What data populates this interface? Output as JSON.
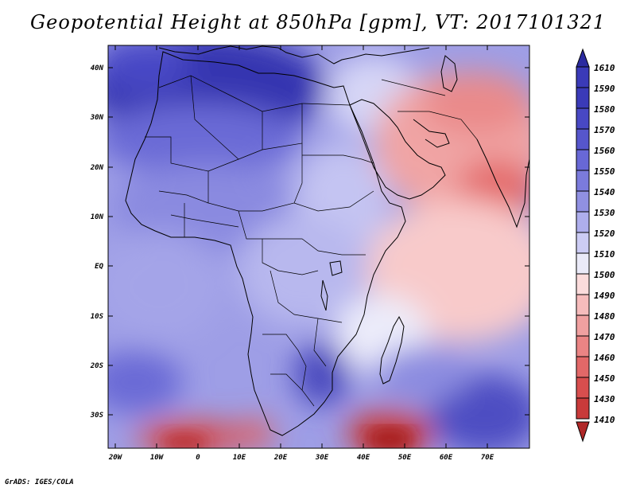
{
  "title": "Geopotential Height at 850hPa [gpm], VT: 2017101321",
  "credit": "GrADS: IGES/COLA",
  "map": {
    "lat_labels": [
      "40N",
      "30N",
      "20N",
      "10N",
      "EQ",
      "10S",
      "20S",
      "30S"
    ],
    "lon_labels": [
      "20W",
      "10W",
      "0",
      "10E",
      "20E",
      "30E",
      "40E",
      "50E",
      "60E",
      "70E"
    ]
  },
  "colorbar": {
    "labels": [
      "1610",
      "1590",
      "1580",
      "1570",
      "1560",
      "1550",
      "1540",
      "1530",
      "1520",
      "1510",
      "1500",
      "1490",
      "1480",
      "1470",
      "1460",
      "1450",
      "1430",
      "1410"
    ],
    "colors": [
      "#2b2ba0",
      "#3a3ab8",
      "#4848c4",
      "#5656cc",
      "#6868d6",
      "#7b7bdc",
      "#9090e2",
      "#aeaeec",
      "#ccccf4",
      "#eaeaf8",
      "#fbdcdc",
      "#f6bcbc",
      "#f0a0a0",
      "#ea8484",
      "#e26868",
      "#d84e4e",
      "#c83a3a",
      "#b02828"
    ]
  }
}
